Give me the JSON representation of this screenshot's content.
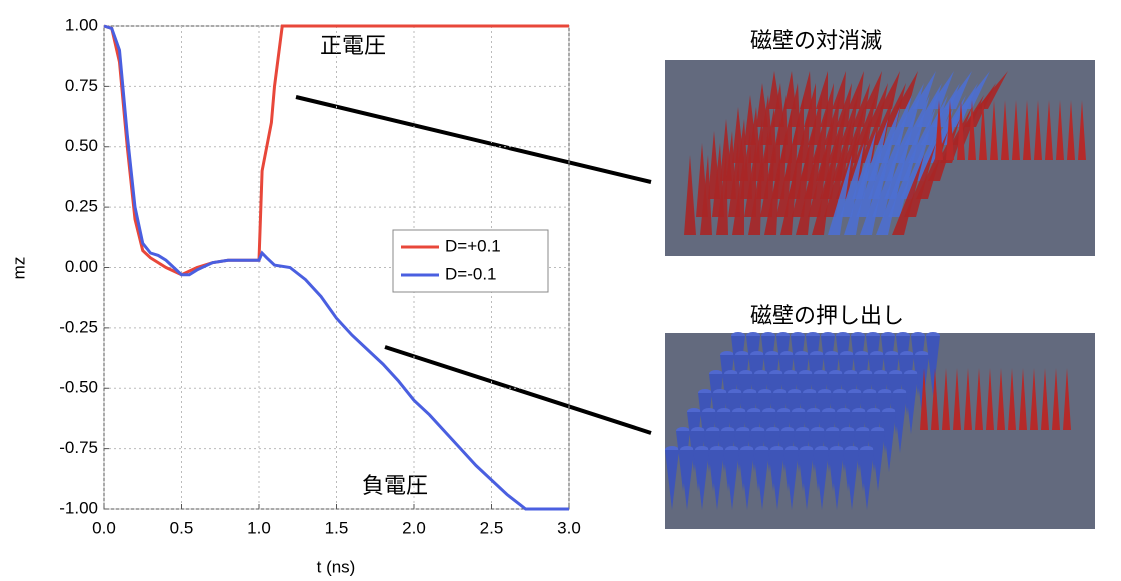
{
  "chart_data": {
    "type": "line",
    "xlabel": "t (ns)",
    "ylabel": "mz",
    "xlim": [
      0,
      3
    ],
    "ylim": [
      -1,
      1
    ],
    "xticks": [
      {
        "value": 0,
        "label": "0.0"
      },
      0.5,
      {
        "value": 1,
        "label": "1.0"
      },
      1.5,
      {
        "value": 2,
        "label": "2.0"
      },
      2.5,
      {
        "value": 3,
        "label": "3.0"
      }
    ],
    "yticks": [
      {
        "value": 1,
        "label": "1.00"
      },
      0.75,
      {
        "value": 0.5,
        "label": "0.50"
      },
      0.25,
      {
        "value": 0,
        "label": "0.00"
      },
      -0.25,
      {
        "value": -0.5,
        "label": "-0.50"
      },
      -0.75,
      {
        "value": -1,
        "label": "-1.00"
      }
    ],
    "grid": true,
    "legend": "right",
    "series": [
      {
        "name": "D=+0.1",
        "color": "#e8473a",
        "x": [
          0,
          0.05,
          0.1,
          0.15,
          0.2,
          0.25,
          0.3,
          0.4,
          0.5,
          0.6,
          0.7,
          0.8,
          0.9,
          1.0,
          1.02,
          1.05,
          1.08,
          1.1,
          1.15,
          3.0
        ],
        "values": [
          1.0,
          0.99,
          0.85,
          0.5,
          0.2,
          0.07,
          0.04,
          0.0,
          -0.03,
          0.0,
          0.02,
          0.03,
          0.03,
          0.03,
          0.4,
          0.5,
          0.6,
          0.75,
          1.0,
          1.0
        ]
      },
      {
        "name": "D=-0.1",
        "color": "#4a5fe0",
        "x": [
          0,
          0.05,
          0.1,
          0.15,
          0.2,
          0.25,
          0.3,
          0.35,
          0.4,
          0.5,
          0.55,
          0.6,
          0.7,
          0.8,
          1.0,
          1.02,
          1.05,
          1.1,
          1.2,
          1.3,
          1.4,
          1.5,
          1.6,
          1.7,
          1.8,
          1.9,
          2.0,
          2.1,
          2.2,
          2.3,
          2.4,
          2.5,
          2.6,
          2.7,
          2.72,
          3.0
        ],
        "values": [
          1.0,
          0.99,
          0.9,
          0.55,
          0.25,
          0.1,
          0.06,
          0.05,
          0.03,
          -0.03,
          -0.03,
          -0.01,
          0.02,
          0.03,
          0.03,
          0.06,
          0.04,
          0.01,
          0.0,
          -0.05,
          -0.12,
          -0.21,
          -0.28,
          -0.34,
          -0.4,
          -0.47,
          -0.55,
          -0.61,
          -0.68,
          -0.75,
          -0.82,
          -0.88,
          -0.94,
          -0.99,
          -1.0,
          -1.0
        ]
      }
    ],
    "annotations": [
      "正電圧",
      "負電圧",
      "磁壁の対消滅",
      "磁壁の押し出し"
    ]
  }
}
